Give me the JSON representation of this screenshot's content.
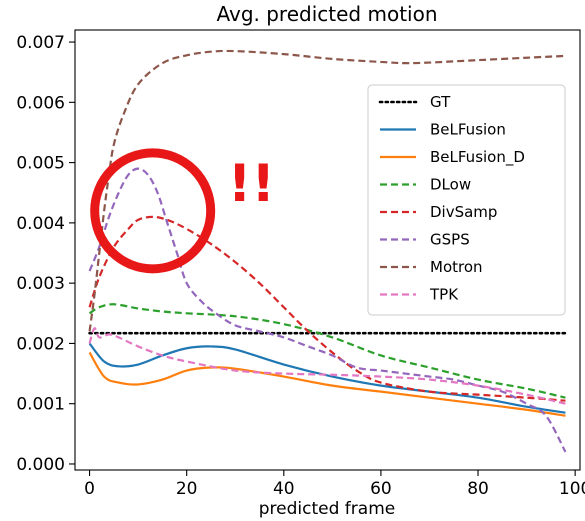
{
  "chart_data": {
    "type": "line",
    "title": "Avg. predicted motion",
    "xlabel": "predicted frame",
    "ylabel": "",
    "xlim": [
      -3,
      101
    ],
    "ylim": [
      -0.0001,
      0.0072
    ],
    "x_ticks": [
      0,
      20,
      40,
      60,
      80,
      100
    ],
    "y_ticks": [
      0.0,
      0.001,
      0.002,
      0.003,
      0.004,
      0.005,
      0.006,
      0.007
    ],
    "y_tick_labels": [
      "0.000",
      "0.001",
      "0.002",
      "0.003",
      "0.004",
      "0.005",
      "0.006",
      "0.007"
    ],
    "grid": false,
    "legend_position": "center-right",
    "series": [
      {
        "name": "GT",
        "color": "#000000",
        "style": "dotted",
        "x": [
          0,
          98
        ],
        "y": [
          0.00217,
          0.00217
        ]
      },
      {
        "name": "BeLFusion",
        "color": "#1f77b4",
        "style": "solid",
        "x": [
          0,
          3,
          6,
          10,
          15,
          20,
          25,
          30,
          40,
          50,
          60,
          70,
          80,
          90,
          98
        ],
        "y": [
          0.002,
          0.0017,
          0.00162,
          0.00165,
          0.0018,
          0.00192,
          0.00195,
          0.0019,
          0.00165,
          0.00145,
          0.0013,
          0.0012,
          0.0011,
          0.00095,
          0.00085
        ]
      },
      {
        "name": "BeLFusion_D",
        "color": "#ff7f0e",
        "style": "solid",
        "x": [
          0,
          3,
          6,
          10,
          15,
          20,
          25,
          30,
          40,
          50,
          60,
          70,
          80,
          90,
          98
        ],
        "y": [
          0.00185,
          0.00145,
          0.00135,
          0.00132,
          0.0014,
          0.00155,
          0.0016,
          0.00158,
          0.00145,
          0.0013,
          0.0012,
          0.0011,
          0.001,
          0.0009,
          0.0008
        ]
      },
      {
        "name": "DLow",
        "color": "#2ca02c",
        "style": "dashed",
        "x": [
          0,
          2,
          5,
          10,
          15,
          20,
          30,
          40,
          50,
          60,
          70,
          80,
          90,
          98
        ],
        "y": [
          0.0025,
          0.0026,
          0.00265,
          0.00258,
          0.00253,
          0.0025,
          0.00245,
          0.00232,
          0.0021,
          0.0018,
          0.0016,
          0.0014,
          0.00125,
          0.0011
        ]
      },
      {
        "name": "DivSamp",
        "color": "#d62728",
        "style": "dashed",
        "x": [
          0,
          2,
          5,
          8,
          10,
          13,
          16,
          20,
          25,
          30,
          35,
          40,
          45,
          50,
          55,
          60,
          70,
          80,
          90,
          98
        ],
        "y": [
          0.0026,
          0.0031,
          0.0036,
          0.0039,
          0.00405,
          0.0041,
          0.00405,
          0.0039,
          0.00365,
          0.00335,
          0.003,
          0.0026,
          0.0022,
          0.00185,
          0.00155,
          0.00135,
          0.0012,
          0.00115,
          0.0011,
          0.00105
        ]
      },
      {
        "name": "GSPS",
        "color": "#9467bd",
        "style": "dashed",
        "x": [
          0,
          2,
          4,
          6,
          8,
          10,
          12,
          14,
          16,
          18,
          20,
          23,
          26,
          30,
          35,
          40,
          45,
          50,
          55,
          60,
          65,
          70,
          75,
          80,
          85,
          90,
          94,
          98
        ],
        "y": [
          0.0032,
          0.0036,
          0.0041,
          0.0045,
          0.0048,
          0.0049,
          0.0048,
          0.0045,
          0.004,
          0.0035,
          0.003,
          0.0027,
          0.0025,
          0.0023,
          0.0022,
          0.0021,
          0.00195,
          0.0018,
          0.0016,
          0.00155,
          0.0015,
          0.00145,
          0.0014,
          0.0013,
          0.0012,
          0.001,
          0.0008,
          0.0002
        ]
      },
      {
        "name": "Motron",
        "color": "#8c564b",
        "style": "dashed",
        "x": [
          0,
          1,
          2,
          3,
          4,
          5,
          7,
          10,
          15,
          20,
          25,
          30,
          40,
          50,
          60,
          65,
          70,
          80,
          90,
          98
        ],
        "y": [
          0.0022,
          0.0028,
          0.0035,
          0.0042,
          0.0048,
          0.0053,
          0.0058,
          0.0063,
          0.00665,
          0.00678,
          0.00684,
          0.00685,
          0.0068,
          0.00672,
          0.00667,
          0.00665,
          0.00666,
          0.0067,
          0.00674,
          0.00677
        ]
      },
      {
        "name": "TPK",
        "color": "#e377c2",
        "style": "dashed",
        "x": [
          0,
          1,
          2,
          4,
          6,
          10,
          15,
          20,
          30,
          40,
          50,
          60,
          70,
          80,
          90,
          98
        ],
        "y": [
          0.002,
          0.00225,
          0.0021,
          0.00215,
          0.0021,
          0.00195,
          0.0018,
          0.0017,
          0.00155,
          0.0015,
          0.00148,
          0.00145,
          0.0014,
          0.0013,
          0.00115,
          0.001
        ]
      }
    ],
    "annotation": {
      "shape": "circle",
      "color": "#e81818",
      "text": "!!",
      "center_data": [
        13,
        0.0042
      ]
    }
  }
}
